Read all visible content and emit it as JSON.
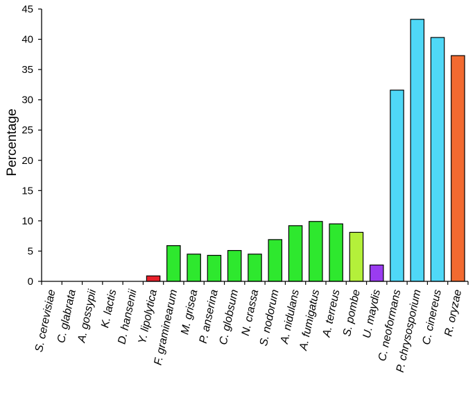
{
  "chart_data": {
    "type": "bar",
    "title": "",
    "xlabel": "",
    "ylabel": "Percentage",
    "ylim": [
      0,
      45
    ],
    "yticks": [
      0,
      5,
      10,
      15,
      20,
      25,
      30,
      35,
      40,
      45
    ],
    "grid": false,
    "legend": "none",
    "categories": [
      "S. cerevisiae",
      "C. glabrata",
      "A. gossypii",
      "K. lactis",
      "D. hansenii",
      "Y. lipolytica",
      "F. graminearum",
      "M. grisea",
      "P. anserina",
      "C. globsum",
      "N. crassa",
      "S. nodorum",
      "A. nidulans",
      "A. fumigatus",
      "A. terreus",
      "S. pombe",
      "U. maydis",
      "C. neoformans",
      "P. chrysosporium",
      "C. cinereus",
      "R. oryzae"
    ],
    "values": [
      0,
      0,
      0,
      0,
      0,
      0.9,
      5.9,
      4.5,
      4.3,
      5.1,
      4.5,
      6.9,
      9.2,
      9.9,
      9.5,
      8.1,
      2.7,
      31.6,
      43.3,
      40.3,
      37.3
    ],
    "colors": [
      "#e8202a",
      "#e8202a",
      "#e8202a",
      "#e8202a",
      "#e8202a",
      "#e8202a",
      "#2ee82e",
      "#2ee82e",
      "#2ee82e",
      "#2ee82e",
      "#2ee82e",
      "#2ee82e",
      "#2ee82e",
      "#2ee82e",
      "#2ee82e",
      "#b4f03a",
      "#9a3cf0",
      "#4fd8f7",
      "#4fd8f7",
      "#4fd8f7",
      "#f26a30"
    ]
  }
}
